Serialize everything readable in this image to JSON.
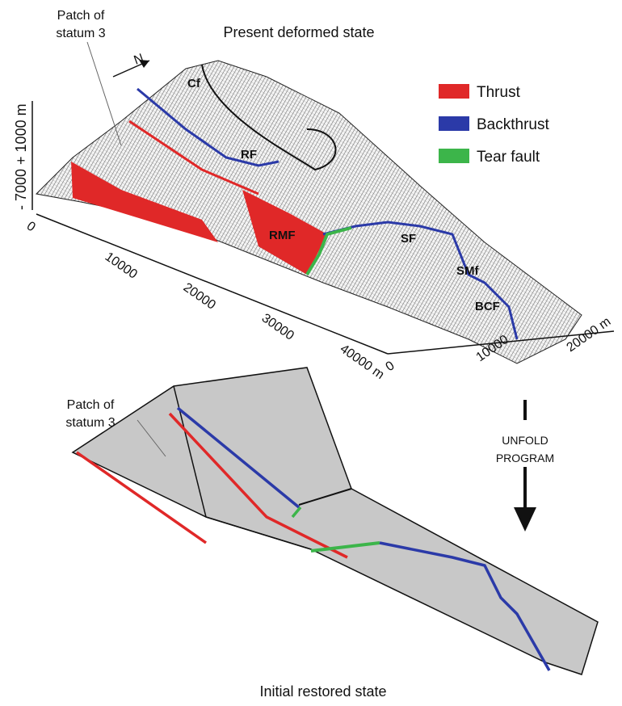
{
  "top_panel": {
    "title": "Present deformed state",
    "patch_label": [
      "Patch of",
      "statum 3"
    ],
    "vertical_scale": "- 7000  + 1000 m",
    "north": "N",
    "fault_labels": [
      "Cf",
      "RF",
      "RMF",
      "SF",
      "SMf",
      "BCF"
    ],
    "x_axis_ticks": [
      "0",
      "10000",
      "20000",
      "30000",
      "40000 m"
    ],
    "y_axis_ticks": [
      "0",
      "10000",
      "20000 m"
    ]
  },
  "legend": [
    {
      "label": "Thrust",
      "color": "#e02828"
    },
    {
      "label": "Backthrust",
      "color": "#2b3aa8"
    },
    {
      "label": "Tear fault",
      "color": "#3cb54a"
    }
  ],
  "arrow_label": [
    "UNFOLD",
    "PROGRAM"
  ],
  "bottom_panel": {
    "title": "Initial restored state",
    "patch_label": [
      "Patch of",
      "statum 3"
    ]
  }
}
